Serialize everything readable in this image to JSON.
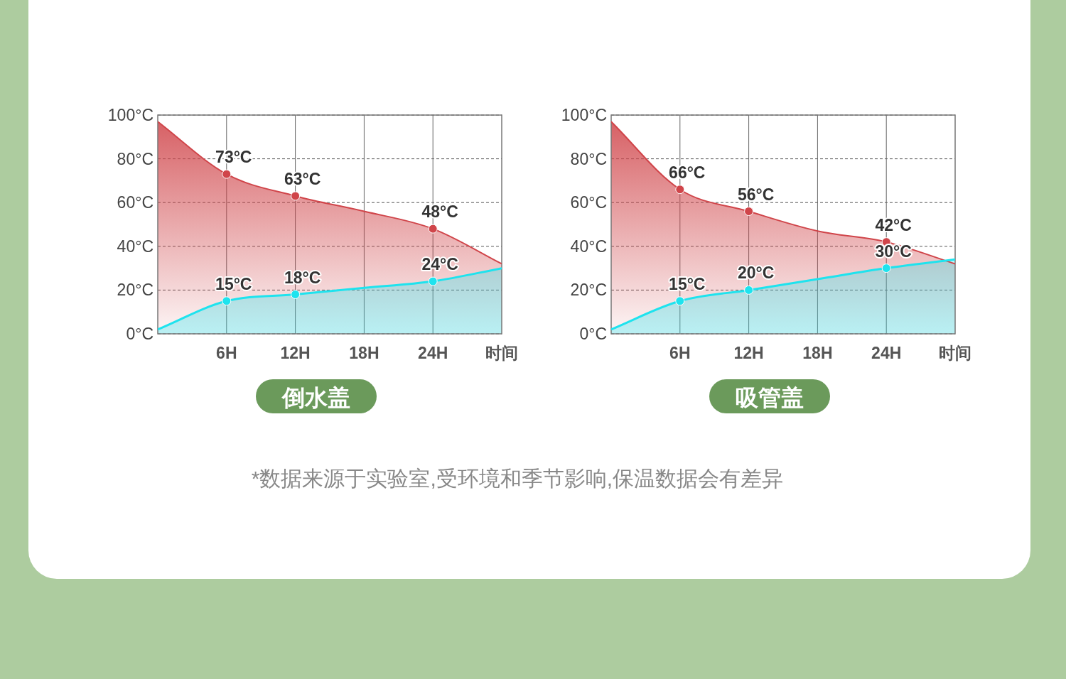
{
  "chart_data": [
    {
      "type": "area",
      "title": "倒水盖",
      "xlabel": "时间",
      "xlim": [
        0,
        30
      ],
      "ylim": [
        0,
        100
      ],
      "grid": true,
      "marker": "circle",
      "annotations": [
        "*数据来源于实验室,受环境和季节影响,保温数据会有差异"
      ],
      "xticks": [
        {
          "value": 6,
          "label": "6H"
        },
        {
          "value": 12,
          "label": "12H"
        },
        {
          "value": 18,
          "label": "18H"
        },
        {
          "value": 24,
          "label": "24H"
        }
      ],
      "yticks": [
        {
          "value": 0,
          "label": "0°C"
        },
        {
          "value": 20,
          "label": "20°C"
        },
        {
          "value": 40,
          "label": "40°C"
        },
        {
          "value": 60,
          "label": "60°C"
        },
        {
          "value": 80,
          "label": "80°C"
        },
        {
          "value": 100,
          "label": "100°C"
        }
      ],
      "x": [
        0,
        6,
        12,
        18,
        24,
        30
      ],
      "series": [
        {
          "color": "#d0454a",
          "values": [
            97,
            73,
            63,
            56,
            48,
            32
          ],
          "value_labels": [
            null,
            "73°C",
            "63°C",
            null,
            "48°C",
            null
          ]
        },
        {
          "color": "#1ee3ee",
          "values": [
            2,
            15,
            18,
            21,
            24,
            30
          ],
          "value_labels": [
            null,
            "15°C",
            "18°C",
            null,
            "24°C",
            null
          ]
        }
      ]
    },
    {
      "type": "area",
      "title": "吸管盖",
      "xlabel": "时间",
      "xlim": [
        0,
        30
      ],
      "ylim": [
        0,
        100
      ],
      "grid": true,
      "marker": "circle",
      "xticks": [
        {
          "value": 6,
          "label": "6H"
        },
        {
          "value": 12,
          "label": "12H"
        },
        {
          "value": 18,
          "label": "18H"
        },
        {
          "value": 24,
          "label": "24H"
        }
      ],
      "yticks": [
        {
          "value": 0,
          "label": "0°C"
        },
        {
          "value": 20,
          "label": "20°C"
        },
        {
          "value": 40,
          "label": "40°C"
        },
        {
          "value": 60,
          "label": "60°C"
        },
        {
          "value": 80,
          "label": "80°C"
        },
        {
          "value": 100,
          "label": "100°C"
        }
      ],
      "x": [
        0,
        6,
        12,
        18,
        24,
        30
      ],
      "series": [
        {
          "color": "#d0454a",
          "values": [
            97,
            66,
            56,
            47,
            42,
            32
          ],
          "value_labels": [
            null,
            "66°C",
            "56°C",
            null,
            "42°C",
            null
          ]
        },
        {
          "color": "#1ee3ee",
          "values": [
            2,
            15,
            20,
            25,
            30,
            34
          ],
          "value_labels": [
            null,
            "15°C",
            "20°C",
            null,
            "30°C",
            null
          ]
        }
      ]
    }
  ]
}
